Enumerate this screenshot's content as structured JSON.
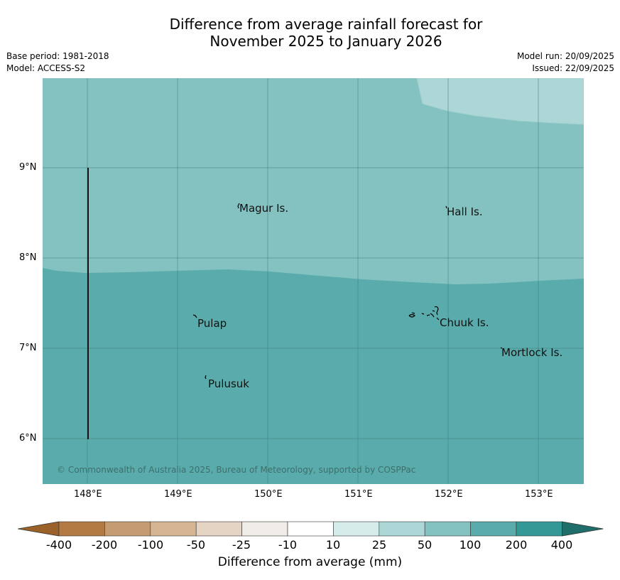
{
  "title_line1": "Difference from average rainfall forecast for",
  "title_line2": "November 2025 to January 2026",
  "meta_left": [
    "Base period: 1981-2018",
    "Model: ACCESS-S2"
  ],
  "meta_right": [
    "Model run: 20/09/2025",
    "Issued: 22/09/2025"
  ],
  "latitude_labels": [
    "9°N",
    "8°N",
    "7°N",
    "6°N"
  ],
  "longitude_labels": [
    "148°E",
    "149°E",
    "150°E",
    "151°E",
    "152°E",
    "153°E"
  ],
  "places": [
    "Magur Is.",
    "Hall Is.",
    "Pulap",
    "Chuuk Is.",
    "Mortlock Is.",
    "Pulusuk"
  ],
  "copyright": "© Commonwealth of Australia 2025, Bureau of Meteorology, supported by COSPPac",
  "colorbar": {
    "ticks": [
      "-400",
      "-200",
      "-100",
      "-50",
      "-25",
      "-10",
      "10",
      "25",
      "50",
      "100",
      "200",
      "400"
    ],
    "colors": [
      "#9a6128",
      "#b27a42",
      "#c59c72",
      "#d5b594",
      "#e5d3c3",
      "#f0ede9",
      "#ffffff",
      "#d6eceb",
      "#add7d6",
      "#84c2c1",
      "#5aabab",
      "#349996",
      "#1f6e6a"
    ],
    "label": "Difference from average (mm)"
  },
  "colors": {
    "zone_25_50": "#add7d6",
    "zone_50_100": "#84c2c1",
    "zone_100_200": "#5aabab"
  }
}
